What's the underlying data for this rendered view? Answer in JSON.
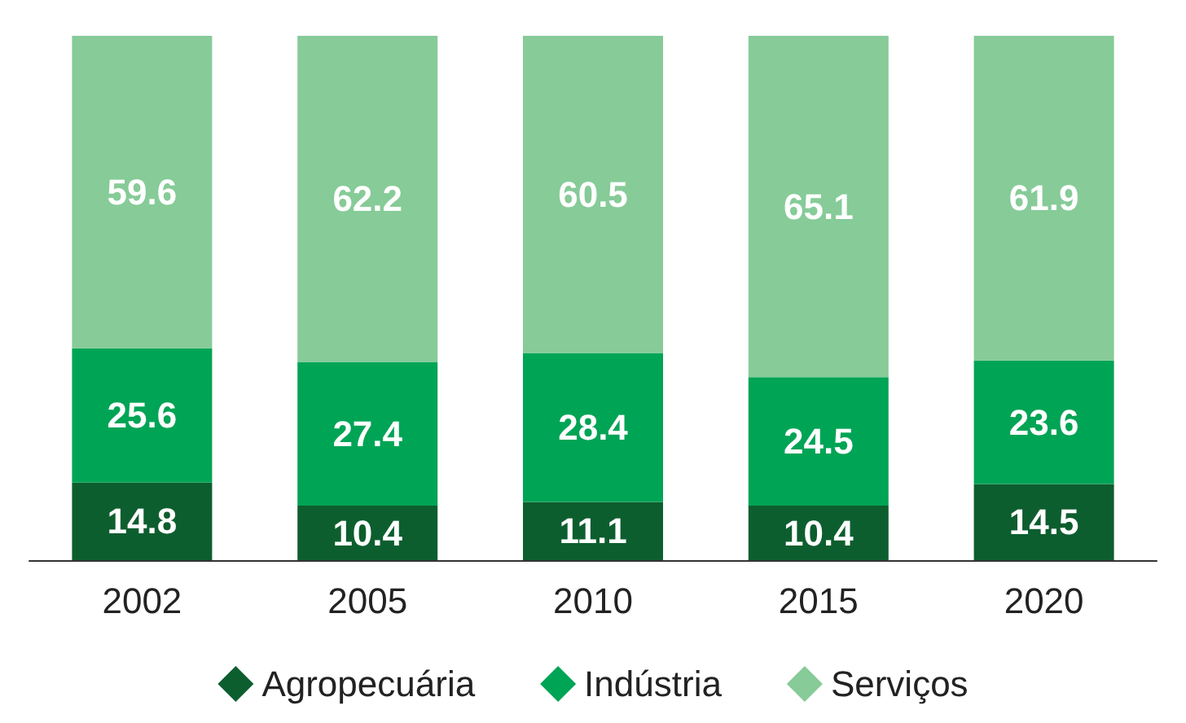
{
  "chart_data": {
    "type": "bar",
    "stacked": true,
    "data_labels": true,
    "legend": "bottom",
    "grid": false,
    "categories": [
      "2002",
      "2005",
      "2010",
      "2015",
      "2020"
    ],
    "series": [
      {
        "name": "Agropecuária",
        "color": "#0d5e2e",
        "values": [
          14.8,
          10.4,
          11.1,
          10.4,
          14.5
        ]
      },
      {
        "name": "Indústria",
        "color": "#00a455",
        "values": [
          25.6,
          27.4,
          28.4,
          24.5,
          23.6
        ]
      },
      {
        "name": "Serviços",
        "color": "#86cb98",
        "values": [
          59.6,
          62.2,
          60.5,
          65.1,
          61.9
        ]
      }
    ]
  }
}
